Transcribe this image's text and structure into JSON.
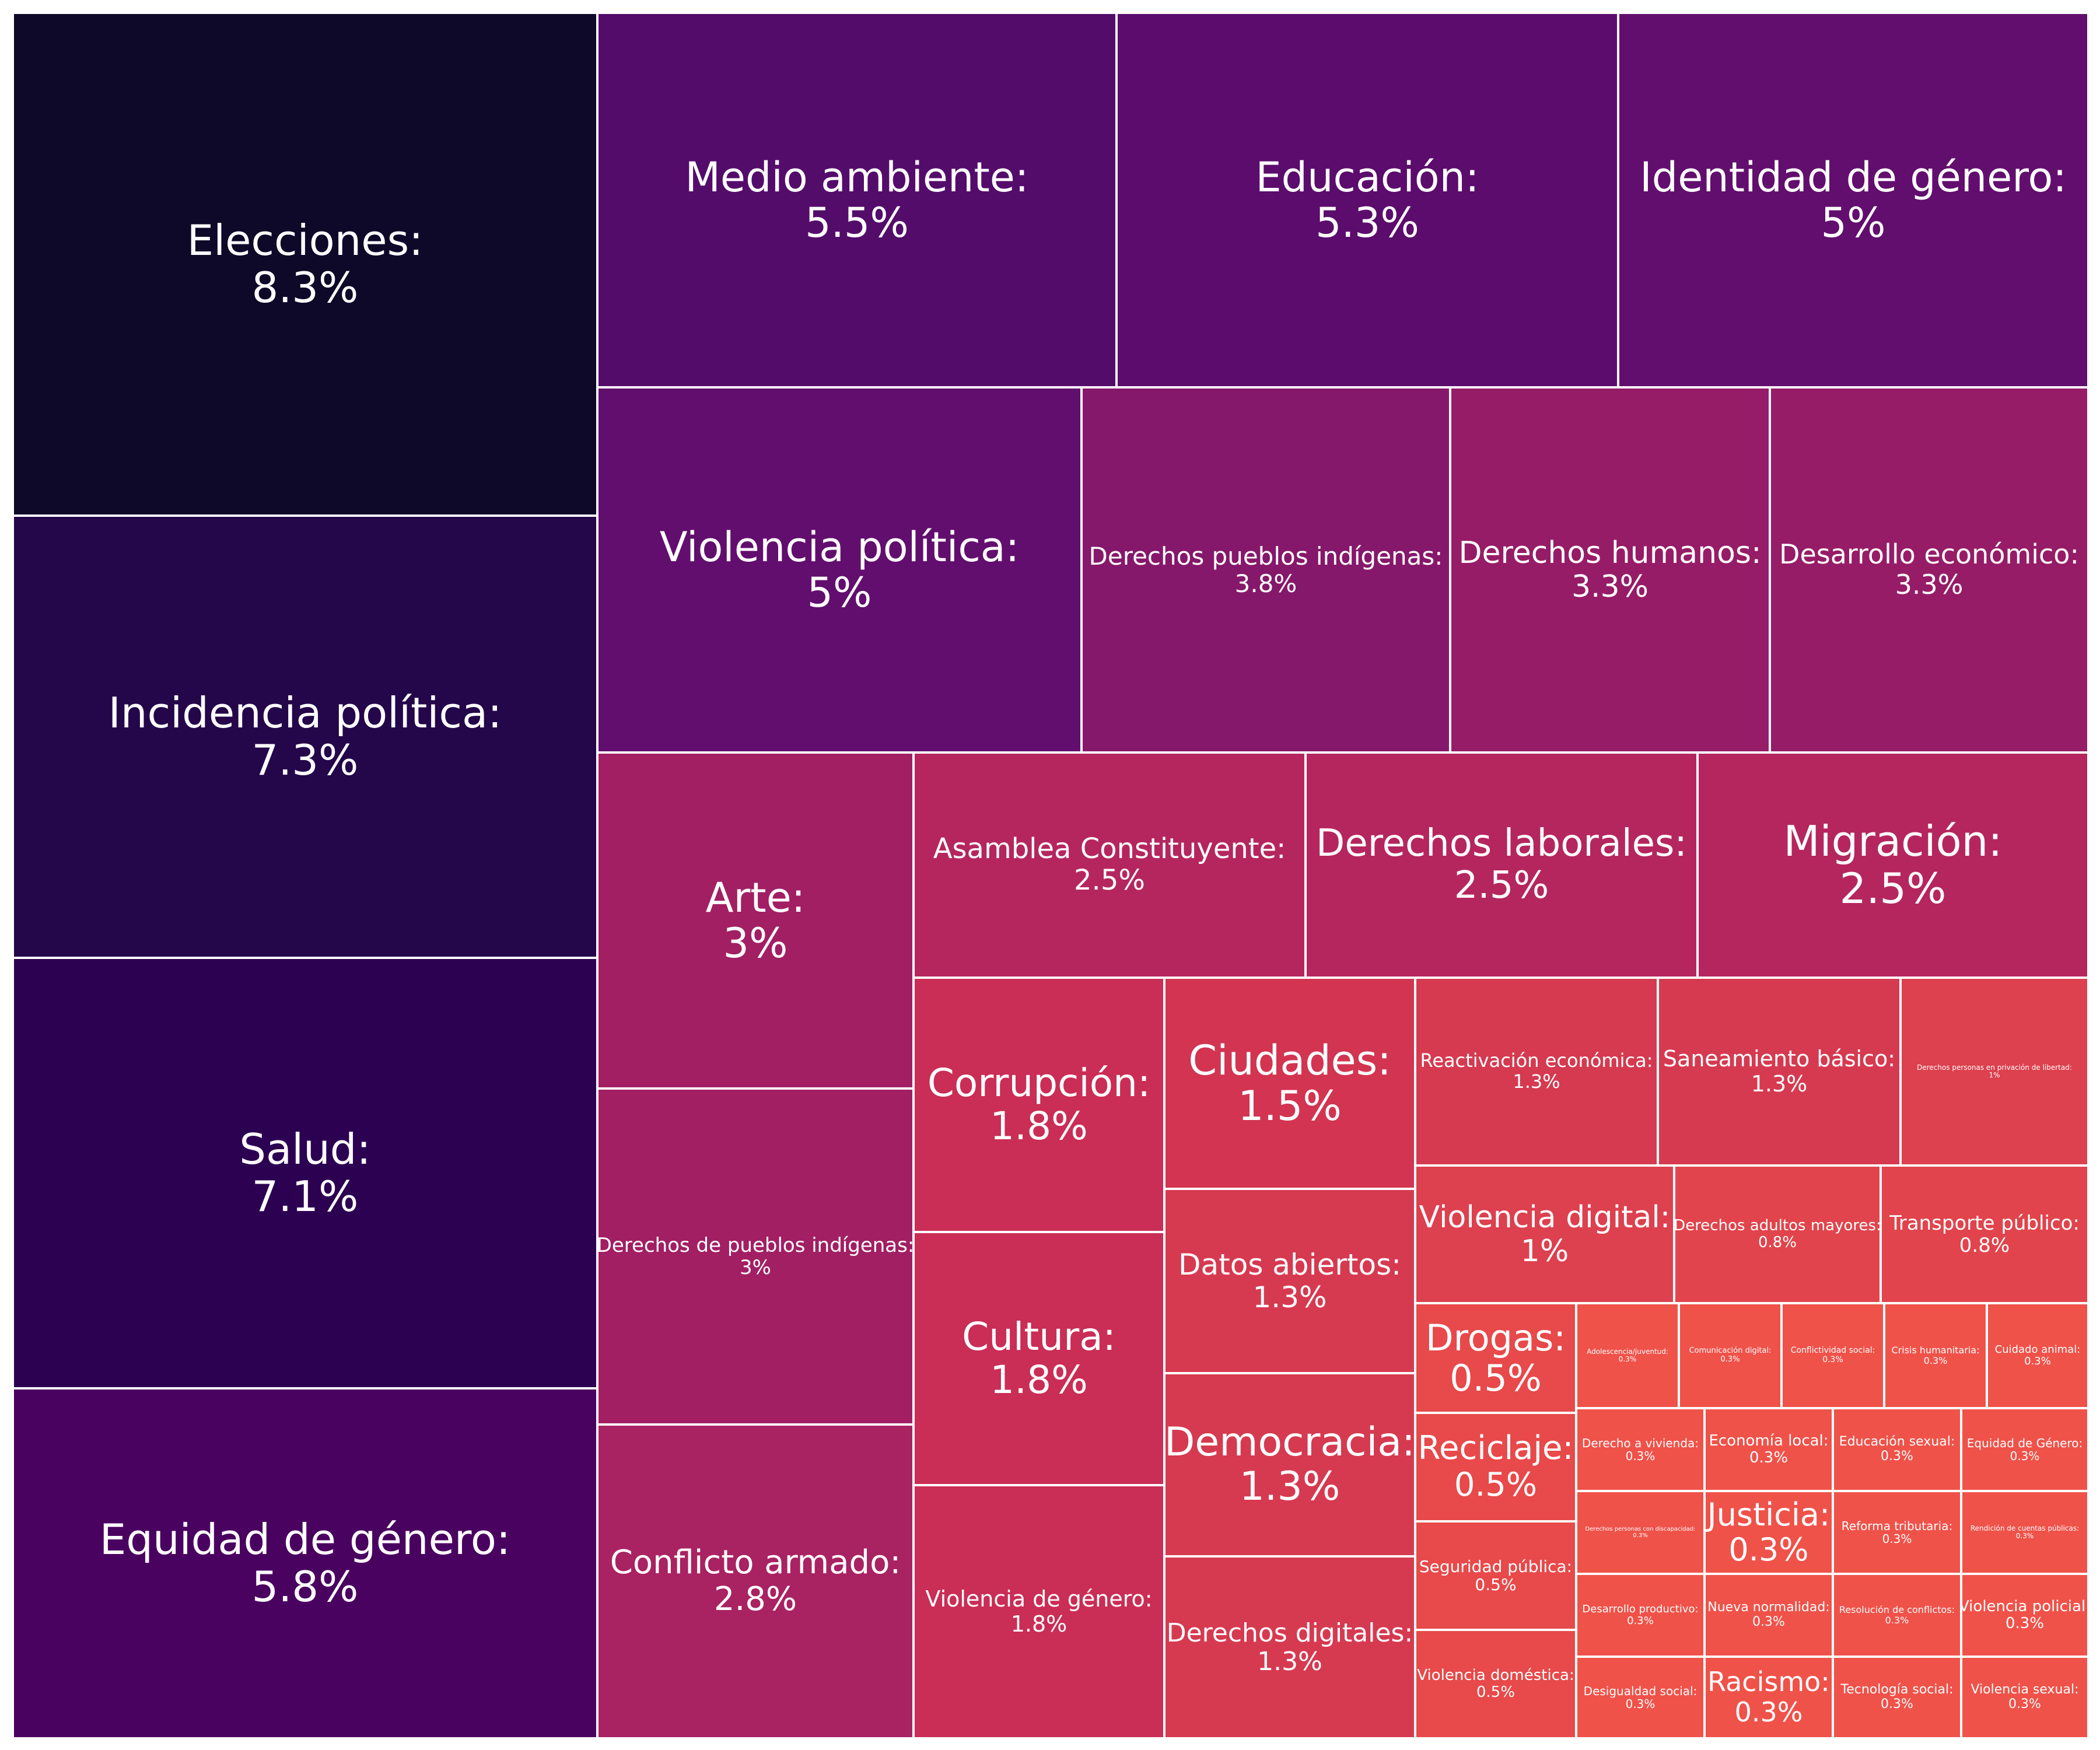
{
  "chart_data": {
    "type": "treemap",
    "title": "",
    "label_separator": ":",
    "value_suffix": "%",
    "items": [
      {
        "label": "Elecciones",
        "value": 8.3,
        "color": "#0e0829"
      },
      {
        "label": "Incidencia política",
        "value": 7.3,
        "color": "#24064a"
      },
      {
        "label": "Salud",
        "value": 7.1,
        "color": "#2c0152"
      },
      {
        "label": "Equidad de género",
        "value": 5.8,
        "color": "#4a0260"
      },
      {
        "label": "Medio ambiente",
        "value": 5.5,
        "color": "#540c6b"
      },
      {
        "label": "Educación",
        "value": 5.3,
        "color": "#5b0c6c"
      },
      {
        "label": "Identidad de género",
        "value": 5,
        "color": "#620e6e"
      },
      {
        "label": "Violencia política",
        "value": 5,
        "color": "#620e6e"
      },
      {
        "label": "Derechos pueblos indígenas",
        "value": 3.8,
        "color": "#86186b"
      },
      {
        "label": "Derechos humanos",
        "value": 3.3,
        "color": "#961c67"
      },
      {
        "label": "Desarrollo económico",
        "value": 3.3,
        "color": "#961c67"
      },
      {
        "label": "Arte",
        "value": 3,
        "color": "#a21f64"
      },
      {
        "label": "Derechos de pueblos indígenas",
        "value": 3,
        "color": "#a21f64"
      },
      {
        "label": "Conflicto armado",
        "value": 2.8,
        "color": "#a92262"
      },
      {
        "label": "Asamblea Constituyente",
        "value": 2.5,
        "color": "#b5265e"
      },
      {
        "label": "Derechos laborales",
        "value": 2.5,
        "color": "#b5265e"
      },
      {
        "label": "Migración",
        "value": 2.5,
        "color": "#b5265e"
      },
      {
        "label": "Corrupción",
        "value": 1.8,
        "color": "#ca2d55"
      },
      {
        "label": "Cultura",
        "value": 1.8,
        "color": "#ca2d55"
      },
      {
        "label": "Violencia de género",
        "value": 1.8,
        "color": "#ca2d55"
      },
      {
        "label": "Ciudades",
        "value": 1.5,
        "color": "#d23451"
      },
      {
        "label": "Datos abiertos",
        "value": 1.3,
        "color": "#d63a50"
      },
      {
        "label": "Democracia",
        "value": 1.3,
        "color": "#d63a50"
      },
      {
        "label": "Derechos digitales",
        "value": 1.3,
        "color": "#d63a50"
      },
      {
        "label": "Reactivación económica",
        "value": 1.3,
        "color": "#d63a50"
      },
      {
        "label": "Saneamiento básico",
        "value": 1.3,
        "color": "#d63a50"
      },
      {
        "label": "Derechos personas en privación de libertad",
        "value": 1,
        "color": "#dd404e"
      },
      {
        "label": "Violencia digital",
        "value": 1,
        "color": "#dd404e"
      },
      {
        "label": "Derechos adultos mayores",
        "value": 0.8,
        "color": "#e1444c"
      },
      {
        "label": "Transporte público",
        "value": 0.8,
        "color": "#e1444c"
      },
      {
        "label": "Drogas",
        "value": 0.5,
        "color": "#e8494a"
      },
      {
        "label": "Reciclaje",
        "value": 0.5,
        "color": "#e8494a"
      },
      {
        "label": "Seguridad pública",
        "value": 0.5,
        "color": "#e8494a"
      },
      {
        "label": "Violencia doméstica",
        "value": 0.5,
        "color": "#e8494a"
      },
      {
        "label": "Adolescencia/juventud",
        "value": 0.3,
        "color": "#ef5249"
      },
      {
        "label": "Comunicación digital",
        "value": 0.3,
        "color": "#ef5249"
      },
      {
        "label": "Conflictividad social",
        "value": 0.3,
        "color": "#ef5249"
      },
      {
        "label": "Crisis humanitaria",
        "value": 0.3,
        "color": "#ef5249"
      },
      {
        "label": "Cuidado animal",
        "value": 0.3,
        "color": "#ef5249"
      },
      {
        "label": "Derecho a vivienda",
        "value": 0.3,
        "color": "#ef5249"
      },
      {
        "label": "Economía local",
        "value": 0.3,
        "color": "#ef5249"
      },
      {
        "label": "Educación sexual",
        "value": 0.3,
        "color": "#ef5249"
      },
      {
        "label": "Equidad de Género",
        "value": 0.3,
        "color": "#ef5249"
      },
      {
        "label": "Derechos personas con discapacidad",
        "value": 0.3,
        "color": "#ef5249"
      },
      {
        "label": "Justicia",
        "value": 0.3,
        "color": "#ef5249"
      },
      {
        "label": "Reforma tributaria",
        "value": 0.3,
        "color": "#ef5249"
      },
      {
        "label": "Rendición de cuentas públicas",
        "value": 0.3,
        "color": "#ef5249"
      },
      {
        "label": "Desarrollo productivo",
        "value": 0.3,
        "color": "#ef5249"
      },
      {
        "label": "Nueva normalidad",
        "value": 0.3,
        "color": "#ef5249"
      },
      {
        "label": "Resolución de conflictos",
        "value": 0.3,
        "color": "#ef5249"
      },
      {
        "label": "Violencia policial",
        "value": 0.3,
        "color": "#ef5249"
      },
      {
        "label": "Desigualdad social",
        "value": 0.3,
        "color": "#ef5249"
      },
      {
        "label": "Racismo",
        "value": 0.3,
        "color": "#ef5249"
      },
      {
        "label": "Tecnología social",
        "value": 0.3,
        "color": "#ef5249"
      },
      {
        "label": "Violencia sexual",
        "value": 0.3,
        "color": "#ef5249"
      }
    ]
  }
}
